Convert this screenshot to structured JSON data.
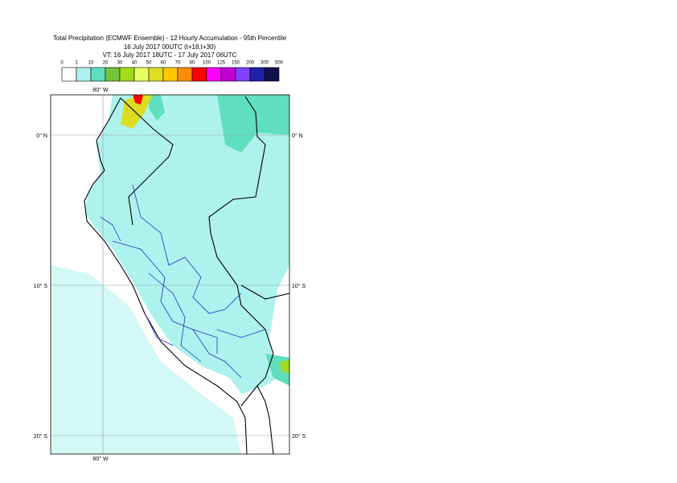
{
  "header": {
    "title": [
      "Total Precipitation (ECMWF Ensemble) - 12 Hourly Accumulation - 95th Percentile",
      "16 July 2017 00UTC (t+18,t+30)",
      "VT: 16 July 2017 18UTC - 17 July 2017 06UTC"
    ]
  },
  "legend": {
    "labels": [
      "0",
      "1",
      "10",
      "20",
      "30",
      "40",
      "50",
      "60",
      "70",
      "80",
      "100",
      "125",
      "150",
      "200",
      "300",
      "500"
    ],
    "colors": [
      "#ffffff",
      "#aef2ee",
      "#5fdfbd",
      "#72c43c",
      "#a0dc1c",
      "#eaff60",
      "#dcdc20",
      "#ffc800",
      "#ff8c00",
      "#ff0000",
      "#ff00ff",
      "#c000d0",
      "#8040ff",
      "#2020a8",
      "#10104a"
    ]
  },
  "map": {
    "lon_labels": [
      "80° W",
      "80° W"
    ],
    "lat_labels": [
      "0° N",
      "10° S",
      "20° S",
      "0° N",
      "10° S",
      "20° S"
    ]
  }
}
